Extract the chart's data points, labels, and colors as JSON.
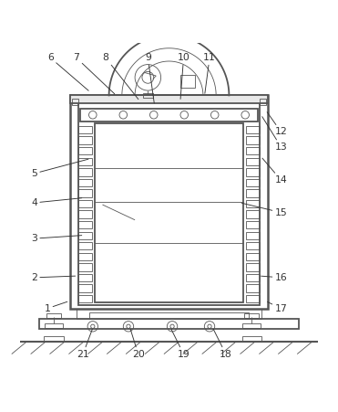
{
  "bg_color": "#ffffff",
  "line_color": "#555555",
  "lw_main": 1.3,
  "lw_thin": 0.6,
  "lw_thick": 1.8,
  "annotations": [
    [
      6,
      0.135,
      0.045,
      0.255,
      0.148
    ],
    [
      7,
      0.215,
      0.045,
      0.335,
      0.158
    ],
    [
      8,
      0.305,
      0.045,
      0.408,
      0.175
    ],
    [
      9,
      0.435,
      0.045,
      0.455,
      0.188
    ],
    [
      10,
      0.545,
      0.045,
      0.535,
      0.175
    ],
    [
      11,
      0.625,
      0.045,
      0.61,
      0.158
    ],
    [
      12,
      0.845,
      0.272,
      0.8,
      0.208
    ],
    [
      13,
      0.845,
      0.318,
      0.785,
      0.222
    ],
    [
      14,
      0.845,
      0.42,
      0.785,
      0.35
    ],
    [
      15,
      0.845,
      0.52,
      0.72,
      0.49
    ],
    [
      5,
      0.085,
      0.4,
      0.255,
      0.355
    ],
    [
      4,
      0.085,
      0.49,
      0.235,
      0.475
    ],
    [
      3,
      0.085,
      0.6,
      0.235,
      0.59
    ],
    [
      2,
      0.085,
      0.72,
      0.215,
      0.715
    ],
    [
      16,
      0.845,
      0.72,
      0.78,
      0.715
    ],
    [
      1,
      0.125,
      0.815,
      0.19,
      0.793
    ],
    [
      17,
      0.845,
      0.815,
      0.8,
      0.793
    ],
    [
      18,
      0.675,
      0.955,
      0.635,
      0.875
    ],
    [
      19,
      0.545,
      0.955,
      0.505,
      0.875
    ],
    [
      20,
      0.405,
      0.955,
      0.38,
      0.875
    ],
    [
      21,
      0.235,
      0.955,
      0.265,
      0.875
    ]
  ]
}
